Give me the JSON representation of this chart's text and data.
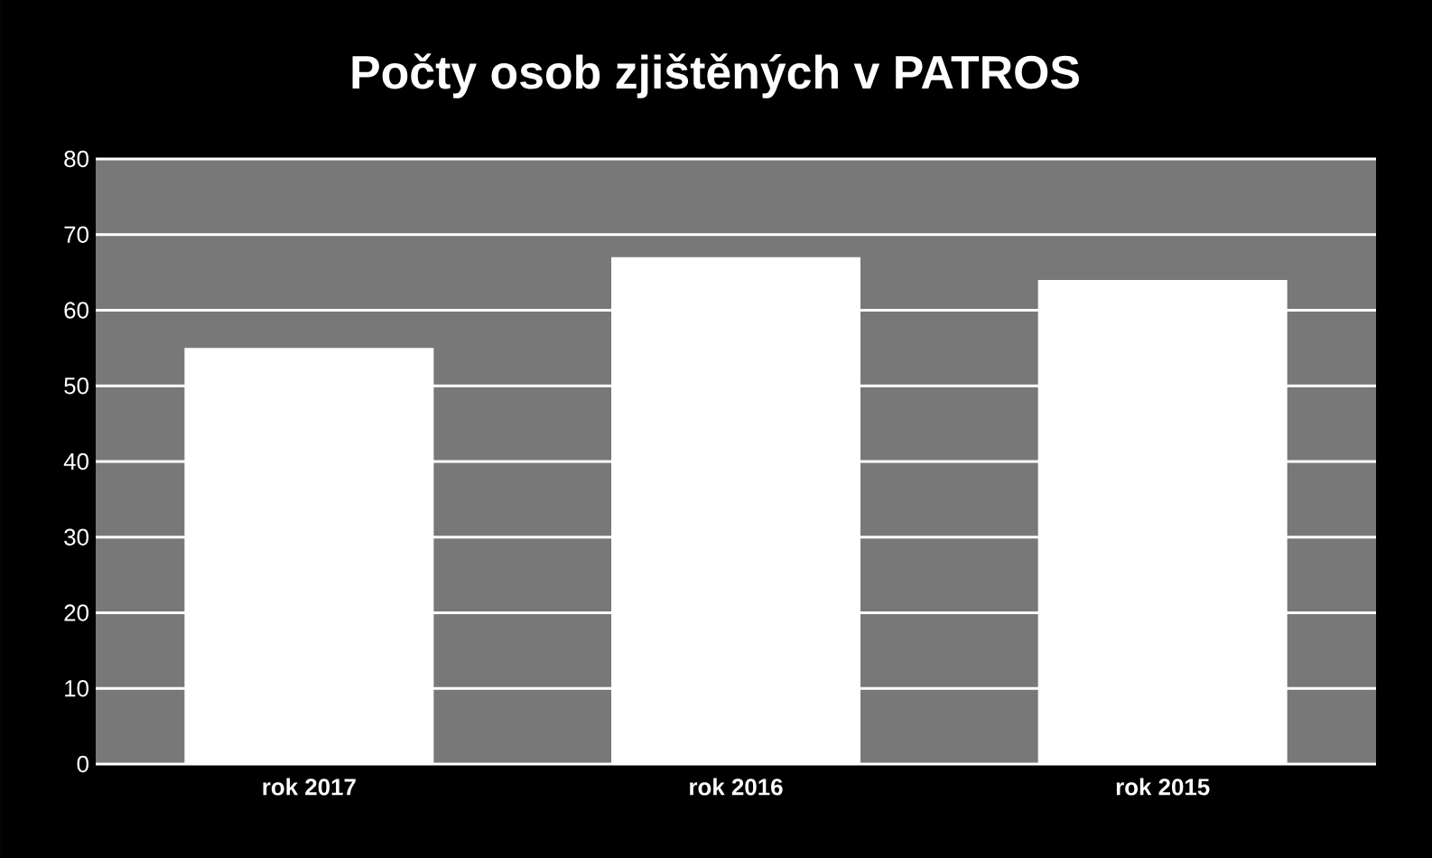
{
  "chart_data": {
    "type": "bar",
    "title": "Počty osob zjištěných v PATROS",
    "categories": [
      "rok 2017",
      "rok 2016",
      "rok 2015"
    ],
    "values": [
      55,
      67,
      64
    ],
    "color": "#ffffff",
    "ylim": [
      0,
      80
    ],
    "yticks": [
      0,
      10,
      20,
      30,
      40,
      50,
      60,
      70,
      80
    ],
    "grid": "y"
  }
}
